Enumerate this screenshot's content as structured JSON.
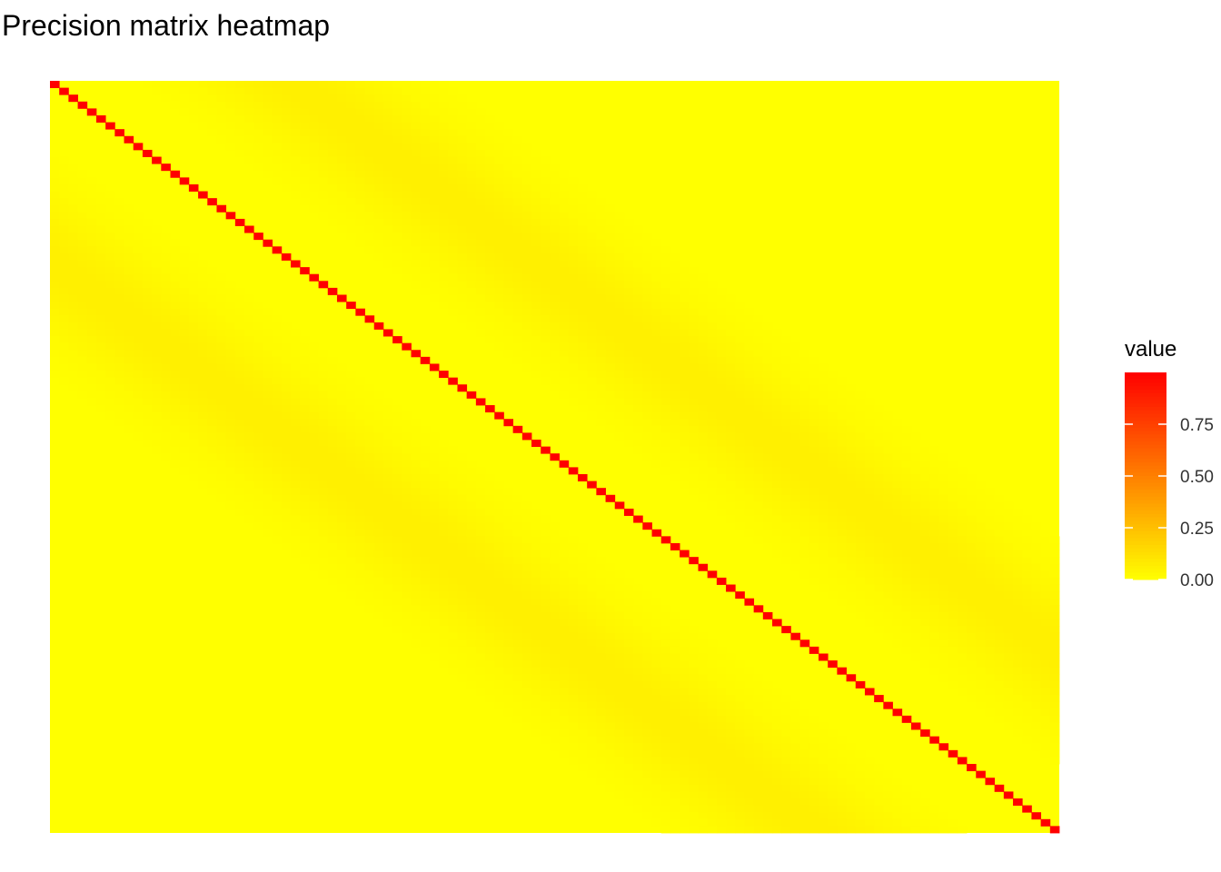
{
  "chart_data": {
    "type": "heatmap",
    "title": "Precision matrix heatmap",
    "xlabel": "",
    "ylabel": "",
    "n_rows": 109,
    "n_cols": 109,
    "diagonal_value": 1.0,
    "off_diagonal_bands": [
      {
        "row_offset": 26,
        "peak_value": 0.06
      },
      {
        "row_offset": -26,
        "peak_value": 0.06
      }
    ],
    "background_value": 0.0,
    "color_scale": {
      "low": "#FFFF00",
      "high": "#FF0000",
      "limits": [
        0,
        1
      ]
    },
    "legend": {
      "title": "value",
      "position": "right",
      "ticks": [
        {
          "value": 0.0,
          "label": "0.00"
        },
        {
          "value": 0.25,
          "label": "0.25"
        },
        {
          "value": 0.5,
          "label": "0.50"
        },
        {
          "value": 0.75,
          "label": "0.75"
        }
      ]
    },
    "grid": false
  }
}
